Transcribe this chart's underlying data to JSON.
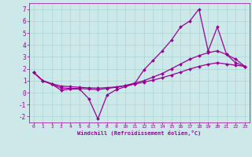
{
  "line1_x": [
    0,
    1,
    2,
    3,
    4,
    5,
    6,
    7,
    8,
    9,
    10,
    11,
    12,
    13,
    14,
    15,
    16,
    17,
    18,
    19,
    20,
    21,
    22,
    23
  ],
  "line1_y": [
    1.7,
    1.0,
    0.7,
    0.2,
    0.3,
    0.3,
    -0.5,
    -2.2,
    -0.2,
    0.25,
    0.5,
    0.75,
    1.9,
    2.7,
    3.5,
    4.4,
    5.5,
    6.0,
    7.0,
    3.5,
    5.5,
    3.2,
    2.5,
    2.2
  ],
  "line2_x": [
    0,
    1,
    2,
    3,
    4,
    5,
    6,
    7,
    8,
    9,
    10,
    11,
    12,
    13,
    14,
    15,
    16,
    17,
    18,
    19,
    20,
    21,
    22,
    23
  ],
  "line2_y": [
    1.7,
    1.0,
    0.7,
    0.4,
    0.35,
    0.35,
    0.3,
    0.25,
    0.35,
    0.45,
    0.6,
    0.8,
    1.0,
    1.3,
    1.6,
    2.0,
    2.4,
    2.8,
    3.1,
    3.35,
    3.5,
    3.2,
    2.8,
    2.2
  ],
  "line3_x": [
    0,
    1,
    2,
    3,
    4,
    5,
    6,
    7,
    8,
    9,
    10,
    11,
    12,
    13,
    14,
    15,
    16,
    17,
    18,
    19,
    20,
    21,
    22,
    23
  ],
  "line3_y": [
    1.7,
    1.0,
    0.75,
    0.55,
    0.5,
    0.45,
    0.4,
    0.38,
    0.42,
    0.48,
    0.58,
    0.72,
    0.88,
    1.05,
    1.25,
    1.48,
    1.72,
    1.98,
    2.2,
    2.38,
    2.5,
    2.4,
    2.3,
    2.2
  ],
  "color": "#990099",
  "bg_color": "#cce8e8",
  "grid_color": "#aad4d4",
  "xlabel": "Windchill (Refroidissement éolien,°C)",
  "xlim": [
    -0.5,
    23.5
  ],
  "ylim": [
    -2.5,
    7.5
  ],
  "yticks": [
    -2,
    -1,
    0,
    1,
    2,
    3,
    4,
    5,
    6,
    7
  ],
  "xticks": [
    0,
    1,
    2,
    3,
    4,
    5,
    6,
    7,
    8,
    9,
    10,
    11,
    12,
    13,
    14,
    15,
    16,
    17,
    18,
    19,
    20,
    21,
    22,
    23
  ]
}
